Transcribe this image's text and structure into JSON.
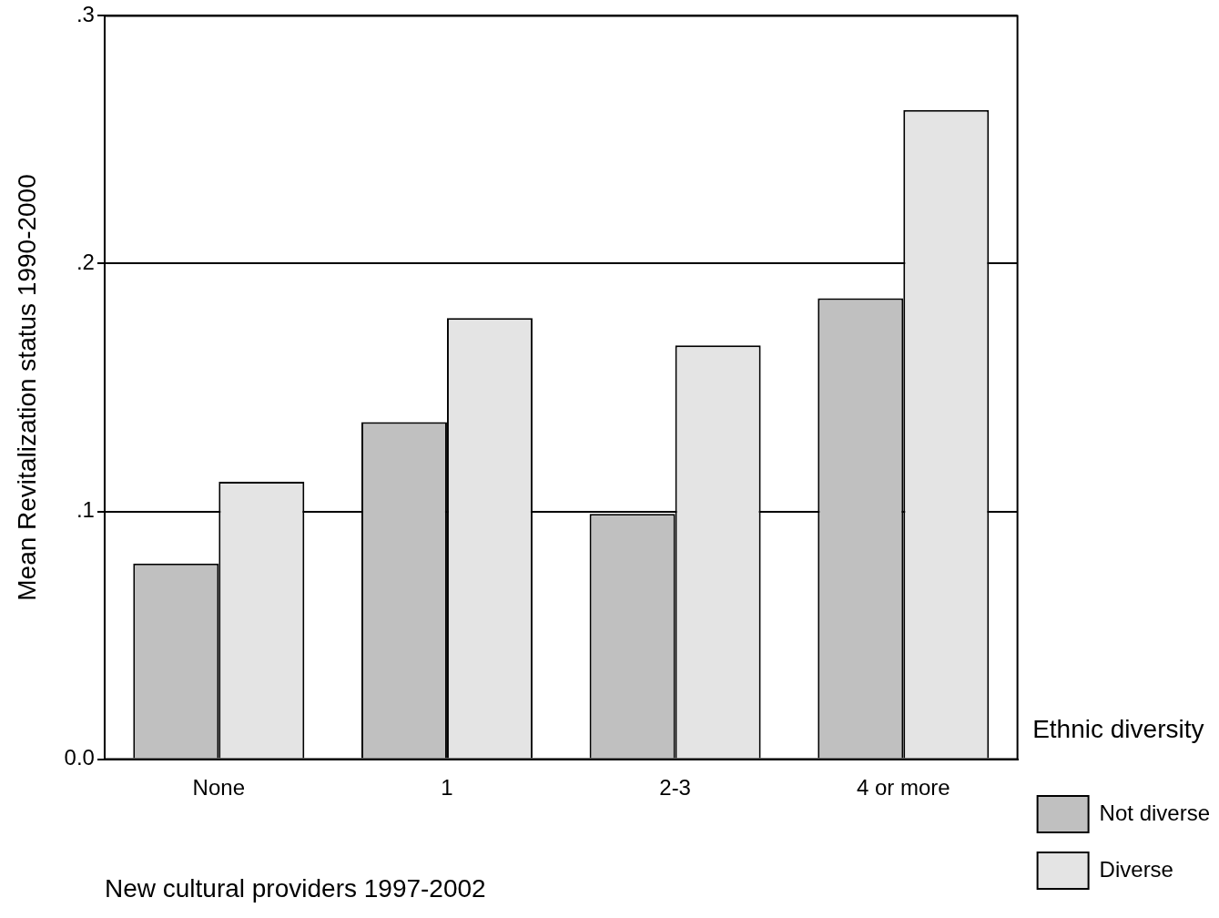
{
  "chart_data": {
    "type": "bar",
    "xlabel": "New cultural providers 1997-2002",
    "ylabel": "Mean Revitalization status 1990-2000",
    "legend_title": "Ethnic diversity",
    "categories": [
      "None",
      "1",
      "2-3",
      "4 or more"
    ],
    "series": [
      {
        "name": "Not diverse",
        "color": "#c0c0c0",
        "values": [
          0.079,
          0.136,
          0.099,
          0.186
        ]
      },
      {
        "name": "Diverse",
        "color": "#e4e4e4",
        "values": [
          0.112,
          0.178,
          0.167,
          0.262
        ]
      }
    ],
    "ylim": [
      0,
      0.3
    ],
    "yticks": [
      {
        "value": 0,
        "label": "0.0"
      },
      {
        "value": 0.1,
        "label": ".1"
      },
      {
        "value": 0.2,
        "label": ".2"
      },
      {
        "value": 0.3,
        "label": ".3"
      }
    ],
    "grid": "y",
    "legend": "right"
  }
}
